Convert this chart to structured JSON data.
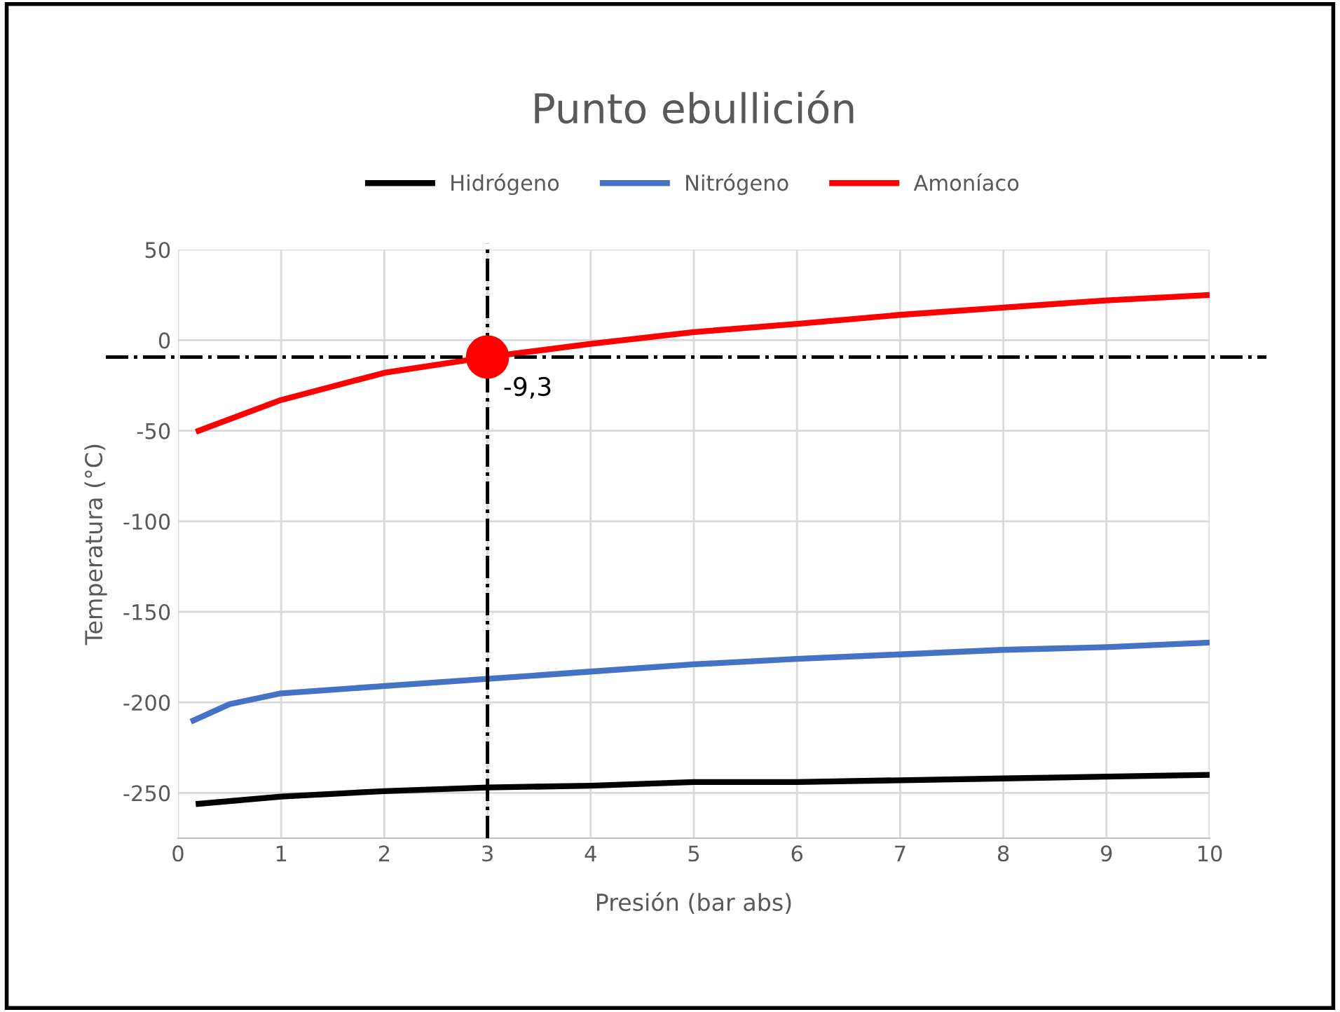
{
  "chart_data": {
    "type": "line",
    "title": "Punto ebullición",
    "xlabel": "Presión (bar abs)",
    "ylabel": "Temperatura (°C)",
    "xlim": [
      0,
      10
    ],
    "xticks": [
      0,
      1,
      2,
      3,
      4,
      5,
      6,
      7,
      8,
      9,
      10
    ],
    "ylim": [
      -275,
      50
    ],
    "yticks": [
      -250,
      -200,
      -150,
      -100,
      -50,
      0,
      50
    ],
    "grid": true,
    "legend": "top",
    "marker": "none",
    "line_style": "solid",
    "series": [
      {
        "name": "Hidrógeno",
        "color": "#000000",
        "x": [
          0.2,
          1,
          2,
          3,
          4,
          5,
          6,
          7,
          8,
          9,
          10
        ],
        "values": [
          -256,
          -252,
          -249,
          -247,
          -246,
          -244,
          -244,
          -243,
          -242,
          -241,
          -240
        ]
      },
      {
        "name": "Nitrógeno",
        "color": "#4472c4",
        "x": [
          0.15,
          0.5,
          1,
          2,
          3,
          4,
          5,
          6,
          7,
          8,
          9,
          10
        ],
        "values": [
          -210,
          -201,
          -195,
          -191,
          -187,
          -183,
          -179,
          -176,
          -173.5,
          -171,
          -169.5,
          -167
        ]
      },
      {
        "name": "Amoníaco",
        "color": "#ff0000",
        "x": [
          0.2,
          1,
          2,
          3,
          4,
          5,
          6,
          7,
          8,
          9,
          10
        ],
        "values": [
          -50,
          -33,
          -18,
          -9.3,
          -2,
          4.5,
          9,
          14,
          18,
          22,
          25
        ]
      },
      {
        "type": "scatter",
        "color": "#ff0000",
        "x": [
          3
        ],
        "values": [
          -9.3
        ],
        "marker": "circle"
      }
    ],
    "ref_lines": [
      {
        "axis": "y",
        "value": -9.3,
        "color": "#000000",
        "line_style": "dashdot"
      },
      {
        "axis": "x",
        "value": 3,
        "color": "#000000",
        "line_style": "dashdot"
      }
    ],
    "annotations": [
      {
        "text": "-9,3",
        "x": 3,
        "y": -9.3
      }
    ]
  }
}
